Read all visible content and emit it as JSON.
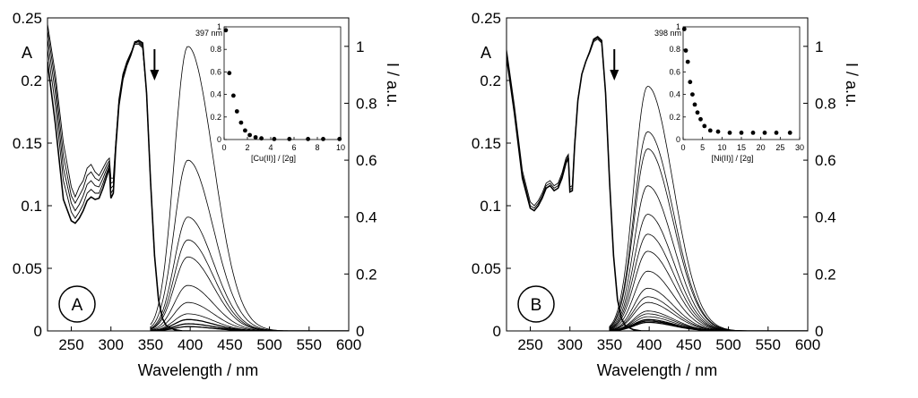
{
  "chart_data": [
    {
      "type": "line",
      "panel_label": "A",
      "xlabel": "Wavelength / nm",
      "ylabel_left": "A",
      "ylabel_right": "I / a.u.",
      "xlim": [
        220,
        600
      ],
      "x_ticks": [
        "250",
        "300",
        "350",
        "400",
        "450",
        "500",
        "550",
        "600"
      ],
      "ylim_left": [
        0,
        0.25
      ],
      "y_ticks_left": [
        "0",
        "0.05",
        "0.1",
        "0.15",
        "0.2",
        "0.25"
      ],
      "ylim_right": [
        0,
        1.1
      ],
      "y_ticks_right": [
        "0",
        "0.2",
        "0.4",
        "0.6",
        "0.8",
        "1"
      ],
      "absorbance_series": [
        {
          "x": [
            220,
            230,
            240,
            250,
            255,
            260,
            265,
            270,
            275,
            280,
            285,
            290,
            295,
            298,
            300,
            303,
            306,
            310,
            315,
            320,
            325,
            330,
            335,
            340,
            345,
            350,
            355,
            360,
            365,
            370,
            380,
            390,
            400
          ],
          "y": [
            0.245,
            0.205,
            0.15,
            0.115,
            0.107,
            0.115,
            0.12,
            0.13,
            0.133,
            0.127,
            0.124,
            0.13,
            0.136,
            0.138,
            0.122,
            0.122,
            0.15,
            0.185,
            0.205,
            0.215,
            0.222,
            0.229,
            0.229,
            0.226,
            0.19,
            0.12,
            0.06,
            0.025,
            0.01,
            0.004,
            0.001,
            0.0,
            0.0
          ]
        },
        {
          "x": [
            220,
            230,
            240,
            250,
            255,
            260,
            265,
            270,
            275,
            280,
            285,
            290,
            295,
            298,
            300,
            303,
            306,
            310,
            315,
            320,
            325,
            330,
            335,
            340,
            345,
            350,
            355,
            360,
            365,
            370,
            380,
            390,
            400
          ],
          "y": [
            0.24,
            0.198,
            0.14,
            0.108,
            0.102,
            0.108,
            0.114,
            0.124,
            0.127,
            0.122,
            0.12,
            0.126,
            0.133,
            0.136,
            0.118,
            0.119,
            0.148,
            0.183,
            0.204,
            0.214,
            0.221,
            0.23,
            0.23,
            0.227,
            0.19,
            0.12,
            0.06,
            0.025,
            0.01,
            0.004,
            0.001,
            0.0,
            0.0
          ]
        },
        {
          "x": [
            220,
            230,
            240,
            250,
            255,
            260,
            265,
            270,
            275,
            280,
            285,
            290,
            295,
            298,
            300,
            303,
            306,
            310,
            315,
            320,
            325,
            330,
            335,
            340,
            345,
            350,
            355,
            360,
            365,
            370,
            380,
            390,
            400
          ],
          "y": [
            0.233,
            0.19,
            0.13,
            0.102,
            0.096,
            0.101,
            0.108,
            0.117,
            0.12,
            0.116,
            0.115,
            0.122,
            0.13,
            0.134,
            0.114,
            0.116,
            0.147,
            0.182,
            0.203,
            0.214,
            0.221,
            0.231,
            0.231,
            0.228,
            0.19,
            0.12,
            0.06,
            0.025,
            0.01,
            0.004,
            0.001,
            0.0,
            0.0
          ]
        },
        {
          "x": [
            220,
            230,
            240,
            250,
            255,
            260,
            265,
            270,
            275,
            280,
            285,
            290,
            295,
            298,
            300,
            303,
            306,
            310,
            315,
            320,
            325,
            330,
            335,
            340,
            345,
            350,
            355,
            360,
            365,
            370,
            380,
            390,
            400
          ],
          "y": [
            0.225,
            0.18,
            0.12,
            0.095,
            0.09,
            0.095,
            0.101,
            0.11,
            0.113,
            0.11,
            0.11,
            0.118,
            0.127,
            0.132,
            0.11,
            0.113,
            0.146,
            0.181,
            0.202,
            0.213,
            0.221,
            0.231,
            0.232,
            0.229,
            0.19,
            0.12,
            0.06,
            0.025,
            0.01,
            0.004,
            0.001,
            0.0,
            0.0
          ]
        },
        {
          "x": [
            220,
            230,
            240,
            250,
            255,
            260,
            265,
            270,
            275,
            280,
            285,
            290,
            295,
            298,
            300,
            303,
            306,
            310,
            315,
            320,
            325,
            330,
            335,
            340,
            345,
            350,
            355,
            360,
            365,
            370,
            380,
            390,
            400
          ],
          "y": [
            0.215,
            0.165,
            0.105,
            0.088,
            0.086,
            0.09,
            0.096,
            0.104,
            0.107,
            0.105,
            0.106,
            0.114,
            0.124,
            0.13,
            0.106,
            0.11,
            0.145,
            0.18,
            0.201,
            0.212,
            0.22,
            0.23,
            0.232,
            0.23,
            0.19,
            0.12,
            0.06,
            0.025,
            0.01,
            0.004,
            0.001,
            0.0,
            0.0
          ]
        }
      ],
      "emission_peak_nm": 397,
      "emission_peak_intensities": [
        1.0,
        0.6,
        0.4,
        0.32,
        0.26,
        0.16,
        0.1,
        0.06,
        0.04,
        0.025,
        0.015
      ],
      "inset": {
        "type": "scatter",
        "annotation": "397 nm",
        "xlabel": "[Cu(II)] / [2g]",
        "xlim": [
          0,
          10
        ],
        "x_ticks": [
          "0",
          "2",
          "4",
          "6",
          "8",
          "10"
        ],
        "ylim": [
          0,
          1
        ],
        "y_ticks": [
          "0",
          "0.2",
          "0.4",
          "0.6",
          "0.8",
          "1"
        ],
        "x": [
          0.15,
          0.45,
          0.8,
          1.1,
          1.45,
          1.8,
          2.2,
          2.7,
          3.2,
          4.3,
          5.6,
          7.2,
          8.5,
          9.9
        ],
        "y": [
          0.97,
          0.59,
          0.39,
          0.25,
          0.15,
          0.08,
          0.04,
          0.02,
          0.01,
          0.005,
          0.005,
          0.005,
          0.005,
          0.005
        ]
      }
    },
    {
      "type": "line",
      "panel_label": "B",
      "xlabel": "Wavelength / nm",
      "ylabel_left": "A",
      "ylabel_right": "I / a.u.",
      "xlim": [
        220,
        600
      ],
      "x_ticks": [
        "250",
        "300",
        "350",
        "400",
        "450",
        "500",
        "550",
        "600"
      ],
      "ylim_left": [
        0,
        0.25
      ],
      "y_ticks_left": [
        "0",
        "0.05",
        "0.1",
        "0.15",
        "0.2",
        "0.25"
      ],
      "ylim_right": [
        0,
        1.1
      ],
      "y_ticks_right": [
        "0",
        "0.2",
        "0.4",
        "0.6",
        "0.8",
        "1"
      ],
      "absorbance_series": [
        {
          "x": [
            220,
            230,
            240,
            250,
            255,
            260,
            265,
            270,
            275,
            280,
            285,
            290,
            295,
            298,
            300,
            303,
            306,
            310,
            315,
            320,
            325,
            330,
            335,
            340,
            345,
            350,
            355,
            360,
            365,
            370,
            380,
            390,
            400
          ],
          "y": [
            0.225,
            0.18,
            0.128,
            0.103,
            0.1,
            0.104,
            0.11,
            0.118,
            0.12,
            0.116,
            0.118,
            0.126,
            0.138,
            0.141,
            0.115,
            0.116,
            0.15,
            0.185,
            0.205,
            0.215,
            0.222,
            0.231,
            0.233,
            0.23,
            0.19,
            0.12,
            0.06,
            0.025,
            0.01,
            0.004,
            0.001,
            0.0,
            0.0
          ]
        },
        {
          "x": [
            220,
            230,
            240,
            250,
            255,
            260,
            265,
            270,
            275,
            280,
            285,
            290,
            295,
            298,
            300,
            303,
            306,
            310,
            315,
            320,
            325,
            330,
            335,
            340,
            345,
            350,
            355,
            360,
            365,
            370,
            380,
            390,
            400
          ],
          "y": [
            0.222,
            0.177,
            0.125,
            0.1,
            0.098,
            0.102,
            0.108,
            0.116,
            0.118,
            0.114,
            0.116,
            0.124,
            0.136,
            0.14,
            0.113,
            0.114,
            0.149,
            0.184,
            0.205,
            0.215,
            0.223,
            0.232,
            0.234,
            0.231,
            0.19,
            0.12,
            0.06,
            0.025,
            0.01,
            0.004,
            0.001,
            0.0,
            0.0
          ]
        },
        {
          "x": [
            220,
            230,
            240,
            250,
            255,
            260,
            265,
            270,
            275,
            280,
            285,
            290,
            295,
            298,
            300,
            303,
            306,
            310,
            315,
            320,
            325,
            330,
            335,
            340,
            345,
            350,
            355,
            360,
            365,
            370,
            380,
            390,
            400
          ],
          "y": [
            0.219,
            0.174,
            0.122,
            0.098,
            0.096,
            0.1,
            0.106,
            0.114,
            0.116,
            0.112,
            0.114,
            0.122,
            0.134,
            0.138,
            0.111,
            0.112,
            0.148,
            0.184,
            0.205,
            0.215,
            0.223,
            0.233,
            0.235,
            0.232,
            0.19,
            0.12,
            0.06,
            0.025,
            0.01,
            0.004,
            0.001,
            0.0,
            0.0
          ]
        }
      ],
      "emission_peak_nm": 398,
      "emission_peak_intensities": [
        0.86,
        0.7,
        0.64,
        0.51,
        0.41,
        0.34,
        0.28,
        0.21,
        0.15,
        0.12,
        0.1,
        0.07,
        0.06,
        0.05,
        0.04,
        0.035,
        0.03
      ],
      "inset": {
        "type": "scatter",
        "annotation": "398 nm",
        "xlabel": "[Ni(II)] / [2g]",
        "xlim": [
          0,
          30
        ],
        "x_ticks": [
          "0",
          "5",
          "10",
          "15",
          "20",
          "25",
          "30"
        ],
        "ylim": [
          0,
          1
        ],
        "y_ticks": [
          "0",
          "0.2",
          "0.4",
          "0.6",
          "0.8",
          "1"
        ],
        "x": [
          0.3,
          0.7,
          1.2,
          1.8,
          2.4,
          3.0,
          3.7,
          4.5,
          5.5,
          7.0,
          9.0,
          12.0,
          15.0,
          18.0,
          21.0,
          24.0,
          27.5
        ],
        "y": [
          0.98,
          0.79,
          0.69,
          0.51,
          0.4,
          0.31,
          0.24,
          0.18,
          0.12,
          0.08,
          0.07,
          0.06,
          0.06,
          0.06,
          0.06,
          0.06,
          0.06
        ]
      }
    }
  ]
}
